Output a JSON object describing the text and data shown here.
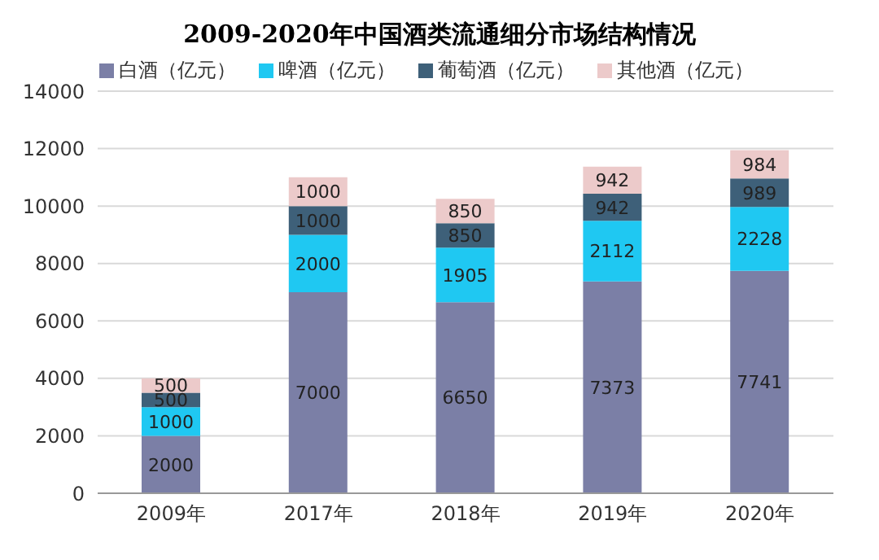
{
  "chart_data": {
    "type": "bar",
    "title": "2009-2020年中国酒类流通细分市场结构情况",
    "categories": [
      "2009年",
      "2017年",
      "2018年",
      "2019年",
      "2020年"
    ],
    "stacked": true,
    "data_labels": true,
    "legend": "top",
    "grid": "y",
    "ylim": [
      0,
      14000
    ],
    "yticks": [
      0,
      2000,
      4000,
      6000,
      8000,
      10000,
      12000,
      14000
    ],
    "series": [
      {
        "name": "白酒（亿元）",
        "color": "#7b7fa6",
        "values": [
          2000,
          7000,
          6650,
          7373,
          7741
        ]
      },
      {
        "name": "啤酒（亿元）",
        "color": "#1fc8f2",
        "values": [
          1000,
          2000,
          1905,
          2112,
          2228
        ]
      },
      {
        "name": "葡萄酒（亿元）",
        "color": "#3e6079",
        "values": [
          500,
          1000,
          850,
          942,
          989
        ]
      },
      {
        "name": "其他酒（亿元）",
        "color": "#eccaca",
        "values": [
          500,
          1000,
          850,
          942,
          984
        ]
      }
    ]
  }
}
